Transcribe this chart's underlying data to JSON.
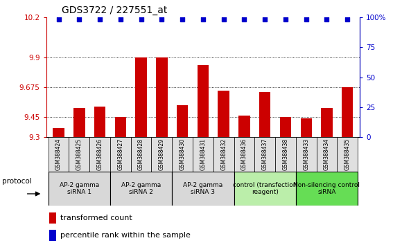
{
  "title": "GDS3722 / 227551_at",
  "samples": [
    "GSM388424",
    "GSM388425",
    "GSM388426",
    "GSM388427",
    "GSM388428",
    "GSM388429",
    "GSM388430",
    "GSM388431",
    "GSM388432",
    "GSM388436",
    "GSM388437",
    "GSM388438",
    "GSM388433",
    "GSM388434",
    "GSM388435"
  ],
  "bar_values": [
    9.37,
    9.52,
    9.53,
    9.45,
    9.9,
    9.9,
    9.54,
    9.84,
    9.65,
    9.46,
    9.64,
    9.45,
    9.44,
    9.52,
    9.675
  ],
  "percentile_values": [
    98,
    98,
    98,
    98,
    98,
    98,
    98,
    98,
    98,
    98,
    98,
    98,
    98,
    98,
    98
  ],
  "ylim_left": [
    9.3,
    10.2
  ],
  "ylim_right": [
    0,
    100
  ],
  "yticks_left": [
    9.3,
    9.45,
    9.675,
    9.9,
    10.2
  ],
  "ytick_labels_left": [
    "9.3",
    "9.45",
    "9.675",
    "9.9",
    "10.2"
  ],
  "yticks_right": [
    0,
    25,
    50,
    75,
    100
  ],
  "ytick_labels_right": [
    "0",
    "25",
    "50",
    "75",
    "100%"
  ],
  "bar_color": "#cc0000",
  "dot_color": "#0000cc",
  "grid_lines": [
    9.45,
    9.675,
    9.9
  ],
  "groups": [
    {
      "label": "AP-2 gamma\nsiRNA 1",
      "start": 0,
      "end": 3,
      "color": "#d8d8d8"
    },
    {
      "label": "AP-2 gamma\nsiRNA 2",
      "start": 3,
      "end": 6,
      "color": "#d8d8d8"
    },
    {
      "label": "AP-2 gamma\nsiRNA 3",
      "start": 6,
      "end": 9,
      "color": "#d8d8d8"
    },
    {
      "label": "control (transfection\nreagent)",
      "start": 9,
      "end": 12,
      "color": "#bbeeaa"
    },
    {
      "label": "Non-silencing control\nsiRNA",
      "start": 12,
      "end": 15,
      "color": "#66dd55"
    }
  ],
  "protocol_label": "protocol",
  "legend_bar_label": "transformed count",
  "legend_dot_label": "percentile rank within the sample",
  "fig_width": 5.8,
  "fig_height": 3.54,
  "dpi": 100
}
